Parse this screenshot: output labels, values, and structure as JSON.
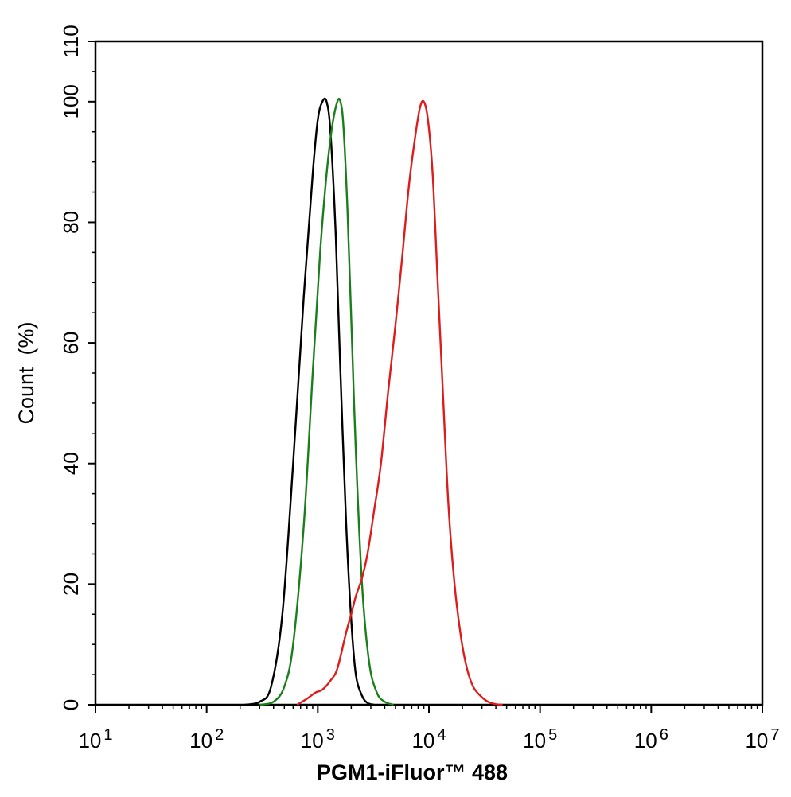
{
  "chart_data": {
    "type": "line",
    "xlabel": "PGM1-iFluor™ 488",
    "ylabel": "Count  (%)",
    "xscale": "log",
    "xlim": [
      10,
      10000000
    ],
    "ylim": [
      0,
      110
    ],
    "x_ticks": [
      {
        "base": "10",
        "exp": "1"
      },
      {
        "base": "10",
        "exp": "2"
      },
      {
        "base": "10",
        "exp": "3"
      },
      {
        "base": "10",
        "exp": "4"
      },
      {
        "base": "10",
        "exp": "5"
      },
      {
        "base": "10",
        "exp": "6"
      },
      {
        "base": "10",
        "exp": "7"
      }
    ],
    "y_ticks": [
      "0",
      "20",
      "40",
      "60",
      "80",
      "100",
      "110"
    ],
    "grid": false,
    "legend": "none",
    "series": [
      {
        "color": "#000000",
        "x": [
          220,
          300,
          380,
          480,
          600,
          750,
          900,
          1000,
          1100,
          1200,
          1300,
          1450,
          1600,
          1800,
          2000,
          2200,
          2500,
          2800,
          3200
        ],
        "y": [
          0,
          0.5,
          3,
          15,
          40,
          68,
          88,
          97,
          100,
          100,
          95,
          78,
          55,
          30,
          14,
          5,
          1.5,
          0.3,
          0
        ]
      },
      {
        "color": "#1a7f1a",
        "x": [
          300,
          400,
          500,
          600,
          750,
          900,
          1050,
          1200,
          1350,
          1500,
          1600,
          1700,
          1850,
          2000,
          2200,
          2500,
          2900,
          3400,
          4000,
          4800
        ],
        "y": [
          0,
          0.5,
          3,
          10,
          30,
          55,
          75,
          88,
          96,
          100,
          100,
          96,
          82,
          64,
          42,
          20,
          7,
          2,
          0.5,
          0
        ]
      },
      {
        "color": "#dd1c1c",
        "x": [
          650,
          800,
          950,
          1100,
          1300,
          1500,
          1800,
          2000,
          2200,
          2500,
          2800,
          3200,
          3700,
          4300,
          5000,
          5800,
          6600,
          7500,
          8300,
          9000,
          9800,
          10800,
          12000,
          13500,
          15000,
          17000,
          19500,
          22000,
          25000,
          29000,
          34000,
          40000,
          46000
        ],
        "y": [
          0,
          1,
          2,
          2.5,
          4,
          6,
          12,
          15,
          18,
          21,
          25,
          32,
          40,
          52,
          63,
          75,
          86,
          94,
          99,
          100,
          97,
          88,
          70,
          50,
          33,
          20,
          11,
          6,
          3,
          1.5,
          0.5,
          0.1,
          0
        ]
      }
    ]
  }
}
